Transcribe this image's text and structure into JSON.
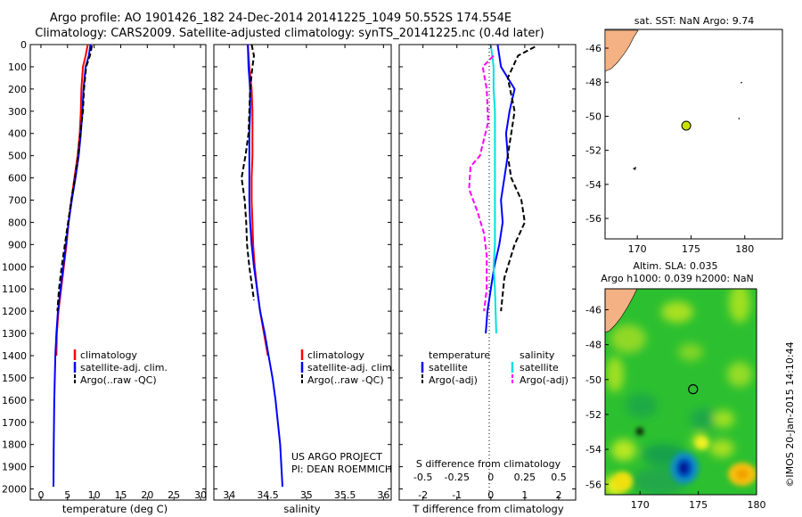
{
  "title": {
    "line1": "Argo profile: AO 1901426_182 24-Dec-2014 20141225_1049 50.552S 174.554E",
    "line2": "Climatology: CARS2009. Satellite-adjusted climatology: synTS_20141225.nc (0.4d later)"
  },
  "colors": {
    "climatology": "#ff0000",
    "satellite": "#0000ff",
    "argo": "#000000",
    "sat_salinity": "#00e0e0",
    "argo_salinity": "#ff00ff",
    "land": "#f4b183",
    "float_marker": "#c8e000"
  },
  "annotations": {
    "project": "US ARGO PROJECT",
    "pi": "PI: DEAN ROEMMICH",
    "credit": "©IMOS 20-Jan-2015 14:10:44"
  },
  "chart_data": [
    {
      "type": "line",
      "xlabel": "temperature (deg C)",
      "ylabel": "",
      "xlim": [
        -2,
        31
      ],
      "ylim": [
        2050,
        0
      ],
      "xticks": [
        0,
        5,
        10,
        15,
        20,
        25,
        30
      ],
      "yticks": [
        0,
        100,
        200,
        300,
        400,
        500,
        600,
        700,
        800,
        900,
        1000,
        1100,
        1200,
        1300,
        1400,
        1500,
        1600,
        1700,
        1800,
        1900,
        2000
      ],
      "legend": [
        "climatology",
        "satellite-adj. clim.",
        "Argo(..raw -QC)"
      ],
      "series": [
        {
          "name": "climatology",
          "color": "#ff0000",
          "style": "solid",
          "x": [
            8.8,
            8.4,
            7.9,
            7.6,
            7.5,
            7.3,
            6.9,
            6.3,
            5.7,
            5.2,
            4.8,
            4.3,
            3.8,
            3.3,
            3.0,
            2.9
          ],
          "y": [
            0,
            50,
            100,
            200,
            300,
            400,
            500,
            600,
            700,
            800,
            900,
            1000,
            1100,
            1200,
            1300,
            1400
          ]
        },
        {
          "name": "satellite-adj. clim.",
          "color": "#0000ff",
          "style": "solid",
          "x": [
            9.3,
            9.0,
            8.4,
            8.0,
            7.8,
            7.5,
            7.1,
            6.5,
            5.8,
            5.2,
            4.7,
            4.2,
            3.7,
            3.2,
            2.9,
            2.7,
            2.6,
            2.5,
            2.45,
            2.4,
            2.35
          ],
          "y": [
            0,
            50,
            100,
            200,
            300,
            400,
            500,
            600,
            700,
            800,
            900,
            1000,
            1100,
            1200,
            1300,
            1400,
            1500,
            1600,
            1700,
            1800,
            1990
          ]
        },
        {
          "name": "Argo(..raw -QC)",
          "color": "#000000",
          "style": "dash",
          "x": [
            9.6,
            9.2,
            8.5,
            8.1,
            7.9,
            7.4,
            7.0,
            6.4,
            5.7,
            5.1,
            4.5,
            3.9,
            3.4,
            3.1
          ],
          "y": [
            5,
            50,
            100,
            200,
            300,
            400,
            500,
            600,
            700,
            800,
            900,
            1000,
            1100,
            1200
          ]
        }
      ]
    },
    {
      "type": "line",
      "xlabel": "salinity",
      "xlim": [
        33.8,
        36.1
      ],
      "ylim": [
        2050,
        0
      ],
      "xticks": [
        34,
        34.5,
        35,
        35.5,
        36
      ],
      "legend": [
        "climatology",
        "satellite-adj. clim.",
        "Argo(..raw -QC)"
      ],
      "series": [
        {
          "name": "climatology",
          "color": "#ff0000",
          "style": "solid",
          "x": [
            34.24,
            34.26,
            34.29,
            34.3,
            34.3,
            34.3,
            34.29,
            34.29,
            34.3,
            34.31,
            34.33,
            34.36,
            34.4,
            34.45,
            34.5
          ],
          "y": [
            0,
            100,
            200,
            300,
            400,
            500,
            600,
            700,
            800,
            900,
            1000,
            1100,
            1200,
            1300,
            1400
          ]
        },
        {
          "name": "satellite-adj. clim.",
          "color": "#0000ff",
          "style": "solid",
          "x": [
            34.24,
            34.25,
            34.27,
            34.27,
            34.26,
            34.26,
            34.26,
            34.26,
            34.27,
            34.29,
            34.32,
            34.36,
            34.4,
            34.46,
            34.51,
            34.56,
            34.6,
            34.63,
            34.66,
            34.69
          ],
          "y": [
            0,
            100,
            200,
            300,
            400,
            500,
            600,
            700,
            800,
            900,
            1000,
            1100,
            1200,
            1300,
            1400,
            1500,
            1600,
            1700,
            1800,
            1990
          ]
        },
        {
          "name": "Argo(..raw -QC)",
          "color": "#000000",
          "style": "dash",
          "x": [
            34.29,
            34.32,
            34.3,
            34.27,
            34.25,
            34.21,
            34.16,
            34.2,
            34.22,
            34.23,
            34.26,
            34.32
          ],
          "y": [
            0,
            50,
            100,
            200,
            400,
            500,
            600,
            700,
            800,
            900,
            1000,
            1150
          ]
        }
      ]
    },
    {
      "type": "line",
      "xlabel_top": "S difference from climatology",
      "xlabel": "T difference from climatology",
      "xlim": [
        -2.7,
        2.5
      ],
      "ylim": [
        2050,
        0
      ],
      "xticks": [
        -2,
        -1,
        0,
        1,
        2
      ],
      "xticks_salinity": [
        -0.5,
        -0.25,
        0,
        0.25,
        0.5
      ],
      "legend_title_left": "temperature",
      "legend_title_right": "salinity",
      "legend": [
        "satellite",
        "Argo(-adj)",
        "satellite",
        "Argo(-adj)"
      ],
      "series": [
        {
          "name": "satellite",
          "quantity": "temperature",
          "color": "#0000ff",
          "style": "solid",
          "x": [
            0.2,
            0.3,
            0.7,
            0.55,
            0.45,
            0.5,
            0.4,
            0.3,
            0.35,
            0.25,
            0.1,
            0.0,
            -0.1,
            -0.15
          ],
          "y": [
            0,
            100,
            200,
            300,
            400,
            500,
            600,
            700,
            800,
            900,
            1000,
            1100,
            1200,
            1300
          ]
        },
        {
          "name": "Argo(-adj)",
          "quantity": "temperature",
          "color": "#000000",
          "style": "dash",
          "x": [
            1.3,
            0.8,
            0.5,
            0.7,
            0.6,
            0.5,
            0.6,
            0.9,
            1.0,
            0.7,
            0.4,
            0.3
          ],
          "y": [
            10,
            50,
            150,
            300,
            400,
            500,
            600,
            700,
            800,
            900,
            1050,
            1200
          ]
        },
        {
          "name": "satellite",
          "quantity": "salinity",
          "color": "#00e0e0",
          "style": "solid",
          "x": [
            0.0,
            0.02,
            0.02,
            0.03,
            0.03,
            0.03,
            0.03,
            0.03,
            0.03,
            0.03,
            0.02,
            0.03,
            0.04
          ],
          "y": [
            0,
            100,
            200,
            300,
            400,
            500,
            600,
            700,
            800,
            900,
            1000,
            1100,
            1300
          ]
        },
        {
          "name": "Argo(-adj)",
          "quantity": "salinity",
          "color": "#ff00ff",
          "style": "dash",
          "x": [
            0.02,
            -0.06,
            -0.03,
            -0.02,
            -0.08,
            -0.15,
            -0.16,
            -0.1,
            -0.05,
            -0.03,
            -0.03,
            -0.05
          ],
          "y": [
            50,
            100,
            200,
            350,
            500,
            550,
            650,
            750,
            850,
            950,
            1100,
            1200
          ]
        }
      ]
    },
    {
      "type": "scatter",
      "title": "sat. SST: NaN Argo: 9.74",
      "xlim": [
        167,
        183.5
      ],
      "ylim": [
        -57.2,
        -44.9
      ],
      "xticks": [
        170,
        175,
        180
      ],
      "yticks": [
        -46,
        -48,
        -50,
        -52,
        -54,
        -56
      ],
      "marker": {
        "lon": 174.554,
        "lat": -50.552
      }
    },
    {
      "type": "heatmap",
      "title_line1": "Altim. SLA: 0.035",
      "title_line2": "Argo h1000: 0.039 h2000: NaN",
      "xlim": [
        167,
        180
      ],
      "ylim": [
        -56.6,
        -44.8
      ],
      "xticks": [
        170,
        175,
        180
      ],
      "yticks": [
        -46,
        -48,
        -50,
        -52,
        -54,
        -56
      ],
      "marker": {
        "lon": 174.554,
        "lat": -50.552
      }
    }
  ]
}
